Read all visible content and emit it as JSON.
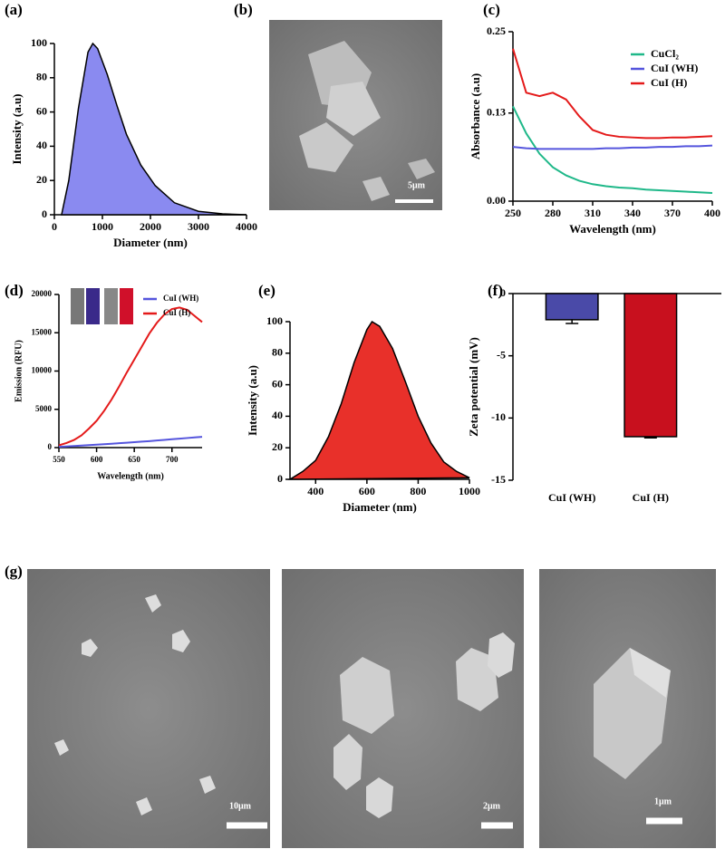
{
  "chart_data": [
    {
      "type": "area",
      "panel_label": "(a)",
      "xlabel": "Diameter (nm)",
      "ylabel": "Intensity (a.u)",
      "color": "#8a8af0",
      "x": [
        150,
        300,
        500,
        700,
        800,
        900,
        1100,
        1300,
        1500,
        1800,
        2100,
        2500,
        3000,
        3500,
        4000
      ],
      "values": [
        0,
        20,
        62,
        95,
        100,
        97,
        82,
        64,
        47,
        29,
        17,
        7,
        2,
        0.5,
        0
      ],
      "xlim": [
        0,
        4000
      ],
      "xticks": [
        0,
        1000,
        2000,
        3000,
        4000
      ],
      "ylim": [
        0,
        100
      ],
      "yticks": [
        0,
        20,
        40,
        60,
        80,
        100
      ]
    },
    {
      "type": "line",
      "panel_label": "(c)",
      "xlabel": "Wavelength (nm)",
      "ylabel": "Absorbance (a.u)",
      "legend": "upper right",
      "x": [
        250,
        260,
        270,
        280,
        290,
        300,
        310,
        320,
        330,
        340,
        350,
        360,
        370,
        380,
        390,
        400
      ],
      "series": [
        {
          "name": "CuCl₂",
          "color": "#1fb889",
          "values": [
            0.14,
            0.1,
            0.07,
            0.05,
            0.038,
            0.03,
            0.025,
            0.022,
            0.02,
            0.019,
            0.017,
            0.016,
            0.015,
            0.014,
            0.013,
            0.012
          ]
        },
        {
          "name": "CuI (WH)",
          "color": "#5555dd",
          "values": [
            0.08,
            0.078,
            0.077,
            0.077,
            0.077,
            0.077,
            0.077,
            0.078,
            0.078,
            0.079,
            0.079,
            0.08,
            0.08,
            0.081,
            0.081,
            0.082
          ]
        },
        {
          "name": "CuI (H)",
          "color": "#e41a1a",
          "values": [
            0.225,
            0.16,
            0.155,
            0.16,
            0.15,
            0.125,
            0.105,
            0.098,
            0.095,
            0.094,
            0.093,
            0.093,
            0.094,
            0.094,
            0.095,
            0.096
          ]
        }
      ],
      "xlim": [
        250,
        400
      ],
      "xticks": [
        250,
        280,
        310,
        340,
        370,
        400
      ],
      "ylim": [
        0,
        0.25
      ],
      "yticks": [
        {
          "value": 0,
          "label": "0.00"
        },
        0.13,
        0.25
      ]
    },
    {
      "type": "line",
      "panel_label": "(d)",
      "xlabel": "Wavelength (nm)",
      "ylabel": "Emission (RFU)",
      "legend": "upper right",
      "x": [
        550,
        560,
        570,
        580,
        590,
        600,
        610,
        620,
        630,
        640,
        650,
        660,
        670,
        680,
        690,
        700,
        710,
        720,
        730,
        740
      ],
      "series": [
        {
          "name": "CuI (WH)",
          "color": "#5555dd",
          "values": [
            100,
            150,
            200,
            260,
            320,
            380,
            440,
            500,
            570,
            640,
            710,
            780,
            850,
            930,
            1010,
            1090,
            1170,
            1250,
            1330,
            1400
          ]
        },
        {
          "name": "CuI (H)",
          "color": "#e41a1a",
          "values": [
            300,
            600,
            1000,
            1600,
            2500,
            3500,
            4800,
            6300,
            8000,
            9800,
            11500,
            13200,
            14900,
            16300,
            17400,
            18100,
            18300,
            18000,
            17200,
            16400
          ]
        }
      ],
      "xlim": [
        550,
        740
      ],
      "xticks": [
        550,
        600,
        650,
        700
      ],
      "ylim": [
        0,
        20000
      ],
      "yticks": [
        0,
        5000,
        10000,
        15000,
        20000
      ]
    },
    {
      "type": "area",
      "panel_label": "(e)",
      "xlabel": "Diameter (nm)",
      "ylabel": "Intensity (a.u)",
      "color": "#e8302a",
      "x": [
        300,
        350,
        400,
        450,
        500,
        550,
        600,
        620,
        650,
        700,
        750,
        800,
        850,
        900,
        950,
        1000
      ],
      "values": [
        0,
        5,
        12,
        27,
        48,
        74,
        95,
        100,
        97,
        83,
        62,
        40,
        23,
        11,
        5,
        1
      ],
      "xlim": [
        300,
        1000
      ],
      "xticks": [
        400,
        600,
        800,
        1000
      ],
      "ylim": [
        0,
        100
      ],
      "yticks": [
        0,
        20,
        40,
        60,
        80,
        100
      ]
    },
    {
      "type": "bar",
      "panel_label": "(f)",
      "ylabel": "Zeta potential (mV)",
      "categories": [
        "CuI (WH)",
        "CuI (H)"
      ],
      "values": [
        -2.1,
        -11.5
      ],
      "errors": [
        0.3,
        0.1
      ],
      "colors": [
        "#4a4aa8",
        "#c8101e"
      ],
      "ylim": [
        -15,
        0
      ],
      "yticks": [
        -15,
        -10,
        -5,
        0
      ]
    }
  ],
  "images": [
    {
      "panel_label": "(b)",
      "scale_bars": [
        "5μm"
      ]
    },
    {
      "panel_label": "(g)",
      "scale_bars": [
        "10μm",
        "2μm",
        "1μm"
      ]
    }
  ]
}
